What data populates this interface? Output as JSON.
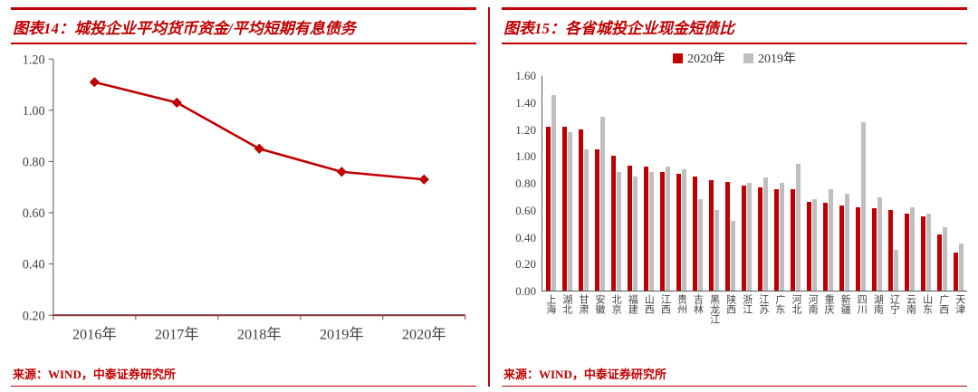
{
  "accent_color": "#c00000",
  "series_gray_color": "#bfbfbf",
  "axis_color": "#595959",
  "baseline_color": "#8f3f3f",
  "tick_label_color": "#404040",
  "panels": {
    "left": {
      "title_prefix": "图表14：",
      "title": "城投企业平均货币资金/平均短期有息债务",
      "source": "来源：WIND，中泰证券研究所"
    },
    "right": {
      "title_prefix": "图表15：",
      "title": "各省城投企业现金短债比",
      "source": "来源：WIND，中泰证券研究所"
    }
  },
  "chart_data": [
    {
      "type": "line",
      "title": "城投企业平均货币资金/平均短期有息债务",
      "categories": [
        "2016年",
        "2017年",
        "2018年",
        "2019年",
        "2020年"
      ],
      "values": [
        1.11,
        1.03,
        0.85,
        0.76,
        0.73
      ],
      "ylim": [
        0.2,
        1.2
      ],
      "ytick_step": 0.2,
      "marker": "diamond",
      "color": "#c00000",
      "grid": false,
      "legend": "none"
    },
    {
      "type": "bar",
      "title": "各省城投企业现金短债比",
      "categories": [
        "上海",
        "湖北",
        "甘肃",
        "安徽",
        "北京",
        "福建",
        "山西",
        "江西",
        "贵州",
        "吉林",
        "黑龙江",
        "陕西",
        "浙江",
        "江苏",
        "广东",
        "河北",
        "河南",
        "重庆",
        "新疆",
        "四川",
        "湖南",
        "辽宁",
        "云南",
        "山东",
        "广西",
        "天津"
      ],
      "series": [
        {
          "name": "2020年",
          "color": "#c00000",
          "values": [
            1.22,
            1.22,
            1.2,
            1.05,
            1.0,
            0.93,
            0.92,
            0.88,
            0.87,
            0.85,
            0.82,
            0.81,
            0.78,
            0.77,
            0.75,
            0.75,
            0.66,
            0.65,
            0.63,
            0.62,
            0.61,
            0.6,
            0.57,
            0.55,
            0.42,
            0.28
          ]
        },
        {
          "name": "2019年",
          "color": "#bfbfbf",
          "values": [
            1.45,
            1.18,
            1.05,
            1.29,
            0.88,
            0.85,
            0.88,
            0.92,
            0.9,
            0.68,
            0.6,
            0.52,
            0.8,
            0.84,
            0.8,
            0.94,
            0.68,
            0.75,
            0.72,
            1.25,
            0.69,
            0.3,
            0.62,
            0.57,
            0.47,
            0.35
          ]
        }
      ],
      "ylim": [
        0.0,
        1.6
      ],
      "ytick_step": 0.2,
      "grid": false,
      "legend_position": "top"
    }
  ]
}
